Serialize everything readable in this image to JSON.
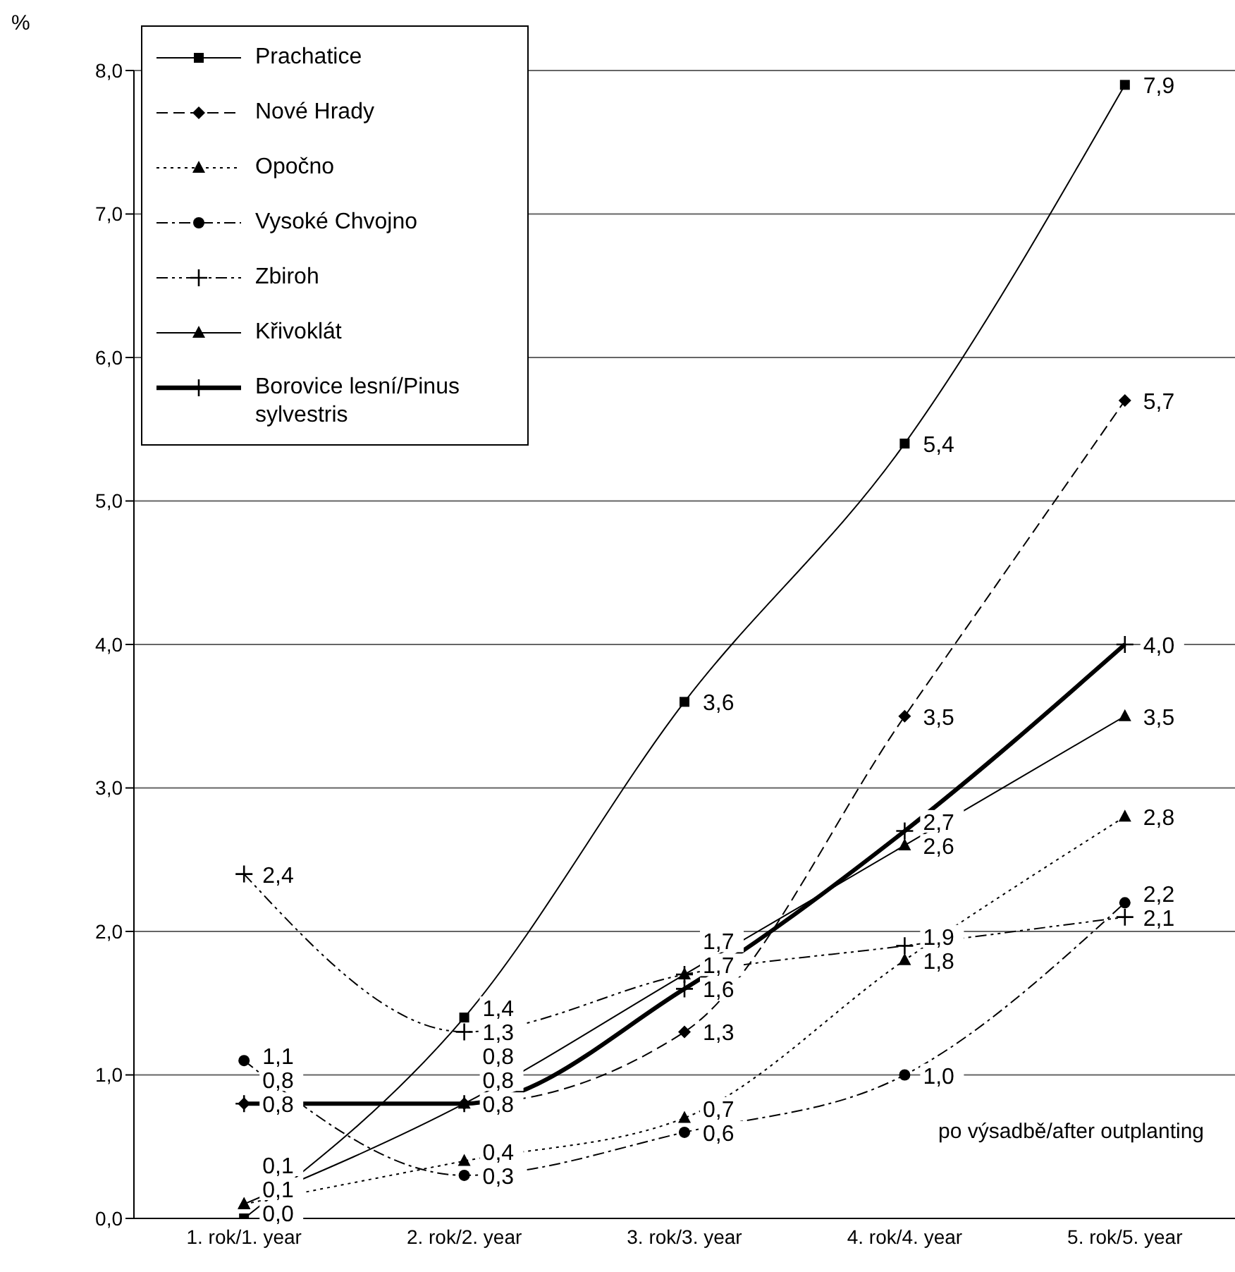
{
  "chart_data": {
    "type": "line",
    "ylabel": "%",
    "categories": [
      "1. rok/1. year",
      "2. rok/2. year",
      "3. rok/3. year",
      "4. rok/4. year",
      "5. rok/5. year"
    ],
    "series": [
      {
        "name": "Prachatice",
        "color": "#000000",
        "marker": "square",
        "line_style": "solid",
        "values": [
          0.0,
          1.4,
          3.6,
          5.4,
          7.9
        ],
        "value_labels": [
          "0,0",
          "1,4",
          "3,6",
          "5,4",
          "7,9"
        ]
      },
      {
        "name": "Nové Hrady",
        "color": "#000000",
        "marker": "diamond",
        "line_style": "dashed",
        "values": [
          0.8,
          0.8,
          1.3,
          3.5,
          5.7
        ],
        "value_labels": [
          "0,8",
          "0,8",
          "1,3",
          "3,5",
          "5,7"
        ]
      },
      {
        "name": "Opočno",
        "color": "#000000",
        "marker": "triangle",
        "line_style": "dotted",
        "values": [
          0.1,
          0.4,
          0.7,
          1.8,
          2.8
        ],
        "value_labels": [
          "0,1",
          "0,4",
          "0,7",
          "1,8",
          "2,8"
        ]
      },
      {
        "name": "Vysoké Chvojno",
        "color": "#000000",
        "marker": "circle",
        "line_style": "dashdot",
        "values": [
          1.1,
          0.3,
          0.6,
          1.0,
          2.2
        ],
        "value_labels": [
          "1,1",
          "0,3",
          "0,6",
          "1,0",
          "2,2"
        ]
      },
      {
        "name": "Zbiroh",
        "color": "#000000",
        "marker": "cross",
        "line_style": "dashdotdot",
        "values": [
          2.4,
          1.3,
          1.7,
          1.9,
          2.1
        ],
        "value_labels": [
          "2,4",
          "1,3",
          "1,7",
          "1,9",
          "2,1"
        ]
      },
      {
        "name": "Křivoklát",
        "color": "#000000",
        "marker": "triangle",
        "line_style": "solid",
        "values": [
          0.1,
          0.8,
          1.7,
          2.6,
          3.5
        ],
        "value_labels": [
          "0,1",
          "0,8",
          "1,7",
          "2,6",
          "3,5"
        ]
      },
      {
        "name": "Borovice lesní/Pinus sylvestris",
        "color": "#000000",
        "marker": "cross",
        "line_style": "solid",
        "values": [
          0.8,
          0.8,
          1.6,
          2.7,
          4.0
        ],
        "value_labels": [
          "0,8",
          "0,8",
          "1,6",
          "2,7",
          "4,0"
        ]
      }
    ],
    "ylim": [
      0,
      8
    ],
    "yticks": [
      {
        "value": 0,
        "label": "0,0"
      },
      {
        "value": 1,
        "label": "1,0"
      },
      {
        "value": 2,
        "label": "2,0"
      },
      {
        "value": 3,
        "label": "3,0"
      },
      {
        "value": 4,
        "label": "4,0"
      },
      {
        "value": 5,
        "label": "5,0"
      },
      {
        "value": 6,
        "label": "6,0"
      },
      {
        "value": 7,
        "label": "7,0"
      },
      {
        "value": 8,
        "label": "8,0"
      }
    ],
    "grid": "y",
    "legend": "top left",
    "annotations": [
      "po výsadbě/after outplanting"
    ]
  }
}
